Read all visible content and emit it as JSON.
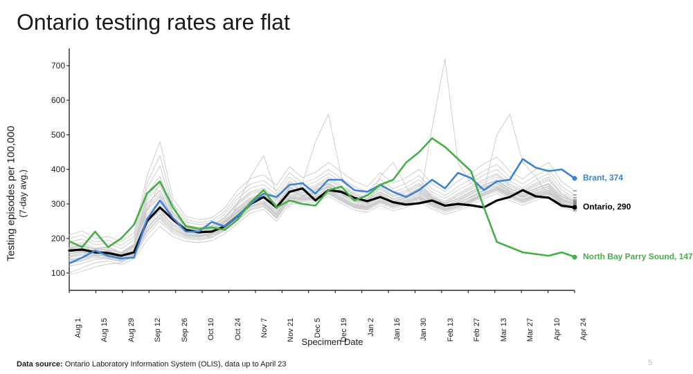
{
  "title": "Ontario testing rates are flat",
  "page_number": "5",
  "source_label": "Data source:",
  "source_text": "Ontario Laboratory Information System (OLIS), data up to April 23",
  "chart": {
    "type": "line",
    "ylabel": "Testing episodes per 100,000",
    "ylabel_sub": "(7-day avg.)",
    "xlabel": "Specimen Date",
    "ylim": [
      50,
      750
    ],
    "yticks": [
      100,
      200,
      300,
      400,
      500,
      600,
      700
    ],
    "xticks": [
      "Aug 1",
      "Aug 15",
      "Aug 29",
      "Sep 12",
      "Sep 26",
      "Oct 10",
      "Oct 24",
      "Nov 7",
      "Nov 21",
      "Dec 5",
      "Dec 19",
      "Jan 2",
      "Jan 16",
      "Jan 30",
      "Feb 13",
      "Feb 27",
      "Mar 13",
      "Mar 27",
      "Apr 10",
      "Apr 24"
    ],
    "n_points": 40,
    "background_color": "#ffffff",
    "axis_color": "#000000",
    "grid_on": false,
    "title_fontsize": 32,
    "label_fontsize": 14,
    "tick_fontsize": 12,
    "bg_line_color": "#c9c9c9",
    "bg_line_width": 0.9,
    "bg_series": [
      [
        150,
        160,
        155,
        150,
        140,
        160,
        250,
        280,
        240,
        220,
        215,
        220,
        240,
        270,
        300,
        310,
        280,
        330,
        320,
        330,
        340,
        325,
        310,
        300,
        320,
        300,
        310,
        330,
        305,
        290,
        300,
        320,
        340,
        350,
        330,
        320,
        330,
        340,
        310,
        300
      ],
      [
        170,
        180,
        160,
        165,
        150,
        170,
        300,
        340,
        260,
        230,
        225,
        230,
        250,
        290,
        320,
        330,
        300,
        350,
        330,
        340,
        360,
        340,
        320,
        310,
        335,
        315,
        325,
        345,
        315,
        300,
        315,
        335,
        355,
        370,
        345,
        330,
        345,
        360,
        320,
        305
      ],
      [
        140,
        145,
        150,
        140,
        135,
        150,
        220,
        260,
        220,
        205,
        200,
        205,
        225,
        255,
        285,
        295,
        260,
        310,
        310,
        315,
        330,
        310,
        290,
        285,
        305,
        290,
        300,
        315,
        295,
        280,
        290,
        305,
        325,
        340,
        320,
        305,
        320,
        330,
        300,
        290
      ],
      [
        160,
        168,
        162,
        158,
        150,
        175,
        280,
        320,
        255,
        225,
        220,
        225,
        245,
        278,
        308,
        320,
        290,
        340,
        325,
        335,
        350,
        332,
        312,
        305,
        328,
        308,
        318,
        338,
        310,
        295,
        308,
        328,
        348,
        360,
        338,
        325,
        338,
        350,
        315,
        302
      ],
      [
        130,
        138,
        150,
        150,
        142,
        158,
        230,
        270,
        228,
        210,
        206,
        212,
        232,
        262,
        292,
        302,
        268,
        318,
        314,
        320,
        336,
        316,
        296,
        290,
        310,
        294,
        304,
        320,
        300,
        284,
        294,
        310,
        330,
        344,
        324,
        310,
        324,
        336,
        304,
        294
      ],
      [
        175,
        182,
        168,
        170,
        156,
        178,
        310,
        355,
        268,
        235,
        228,
        234,
        256,
        298,
        328,
        338,
        308,
        358,
        336,
        346,
        368,
        346,
        326,
        314,
        342,
        320,
        332,
        352,
        320,
        304,
        322,
        342,
        362,
        378,
        350,
        334,
        352,
        368,
        326,
        308
      ],
      [
        145,
        152,
        156,
        146,
        140,
        156,
        240,
        280,
        232,
        215,
        210,
        216,
        236,
        266,
        296,
        306,
        272,
        322,
        318,
        324,
        340,
        320,
        300,
        294,
        314,
        298,
        308,
        324,
        304,
        288,
        298,
        314,
        334,
        348,
        328,
        314,
        328,
        340,
        308,
        298
      ],
      [
        165,
        172,
        166,
        162,
        154,
        180,
        290,
        330,
        260,
        228,
        222,
        228,
        250,
        284,
        314,
        326,
        296,
        346,
        330,
        340,
        356,
        336,
        316,
        310,
        334,
        312,
        324,
        344,
        316,
        300,
        314,
        334,
        354,
        366,
        342,
        328,
        344,
        356,
        320,
        306
      ],
      [
        155,
        162,
        158,
        154,
        146,
        168,
        270,
        310,
        250,
        222,
        216,
        222,
        244,
        276,
        306,
        318,
        288,
        338,
        324,
        334,
        350,
        330,
        310,
        304,
        328,
        306,
        318,
        338,
        310,
        294,
        308,
        328,
        348,
        360,
        336,
        322,
        338,
        350,
        314,
        300
      ],
      [
        135,
        142,
        152,
        148,
        138,
        154,
        225,
        265,
        225,
        208,
        204,
        210,
        230,
        260,
        290,
        300,
        266,
        316,
        312,
        318,
        334,
        314,
        294,
        288,
        308,
        292,
        302,
        318,
        298,
        282,
        292,
        308,
        328,
        342,
        322,
        308,
        322,
        334,
        302,
        292
      ],
      [
        180,
        188,
        172,
        176,
        160,
        184,
        330,
        380,
        276,
        240,
        232,
        238,
        262,
        306,
        336,
        346,
        316,
        366,
        342,
        354,
        378,
        354,
        332,
        320,
        350,
        326,
        340,
        360,
        326,
        308,
        330,
        350,
        372,
        388,
        358,
        340,
        360,
        378,
        332,
        312
      ],
      [
        120,
        128,
        140,
        142,
        132,
        148,
        210,
        250,
        215,
        200,
        196,
        202,
        222,
        252,
        282,
        292,
        258,
        308,
        306,
        312,
        328,
        308,
        288,
        282,
        302,
        286,
        296,
        312,
        292,
        276,
        286,
        302,
        322,
        336,
        316,
        302,
        316,
        328,
        296,
        286
      ],
      [
        200,
        210,
        190,
        195,
        180,
        205,
        360,
        440,
        300,
        255,
        246,
        252,
        278,
        326,
        358,
        368,
        338,
        390,
        360,
        374,
        400,
        374,
        350,
        336,
        372,
        344,
        360,
        382,
        344,
        324,
        350,
        372,
        396,
        414,
        378,
        358,
        382,
        400,
        350,
        326
      ],
      [
        148,
        156,
        160,
        150,
        144,
        160,
        246,
        286,
        236,
        218,
        214,
        220,
        240,
        270,
        300,
        310,
        276,
        326,
        322,
        328,
        344,
        324,
        304,
        298,
        318,
        302,
        312,
        328,
        308,
        292,
        302,
        318,
        338,
        352,
        332,
        318,
        332,
        344,
        312,
        302
      ],
      [
        162,
        170,
        164,
        160,
        152,
        176,
        284,
        324,
        256,
        226,
        220,
        226,
        248,
        280,
        310,
        322,
        292,
        342,
        326,
        336,
        352,
        332,
        312,
        306,
        330,
        308,
        320,
        340,
        312,
        296,
        310,
        330,
        350,
        362,
        338,
        324,
        340,
        352,
        316,
        302
      ],
      [
        138,
        146,
        154,
        146,
        140,
        156,
        232,
        272,
        228,
        212,
        208,
        214,
        234,
        264,
        294,
        304,
        270,
        320,
        316,
        322,
        338,
        318,
        298,
        292,
        312,
        296,
        306,
        322,
        302,
        286,
        296,
        312,
        332,
        346,
        326,
        312,
        326,
        338,
        306,
        296
      ],
      [
        172,
        180,
        170,
        174,
        158,
        182,
        320,
        365,
        272,
        238,
        230,
        236,
        260,
        302,
        332,
        342,
        312,
        362,
        338,
        350,
        372,
        350,
        328,
        316,
        346,
        322,
        336,
        356,
        322,
        304,
        326,
        346,
        368,
        384,
        354,
        336,
        356,
        372,
        328,
        308
      ],
      [
        128,
        136,
        146,
        144,
        136,
        152,
        218,
        258,
        220,
        204,
        200,
        206,
        226,
        256,
        286,
        296,
        262,
        312,
        310,
        316,
        332,
        312,
        292,
        286,
        306,
        290,
        300,
        316,
        296,
        280,
        290,
        306,
        326,
        340,
        320,
        306,
        320,
        332,
        300,
        290
      ],
      [
        190,
        198,
        182,
        186,
        170,
        196,
        345,
        410,
        288,
        248,
        240,
        246,
        270,
        316,
        346,
        356,
        326,
        378,
        350,
        364,
        388,
        364,
        340,
        326,
        360,
        334,
        348,
        370,
        334,
        316,
        340,
        360,
        384,
        400,
        366,
        346,
        370,
        388,
        340,
        318
      ],
      [
        100,
        115,
        130,
        135,
        125,
        140,
        195,
        235,
        205,
        192,
        188,
        194,
        214,
        244,
        274,
        284,
        250,
        300,
        300,
        306,
        322,
        302,
        282,
        276,
        296,
        280,
        290,
        306,
        286,
        270,
        280,
        296,
        316,
        330,
        310,
        296,
        310,
        322,
        290,
        280
      ],
      [
        210,
        222,
        200,
        206,
        190,
        216,
        380,
        480,
        316,
        264,
        254,
        260,
        288,
        340,
        374,
        384,
        354,
        408,
        376,
        392,
        420,
        392,
        366,
        350,
        390,
        360,
        376,
        400,
        358,
        336,
        366,
        390,
        416,
        436,
        394,
        372,
        400,
        420,
        364,
        338
      ],
      [
        156,
        164,
        162,
        156,
        148,
        166,
        262,
        302,
        244,
        222,
        216,
        222,
        244,
        274,
        304,
        316,
        284,
        334,
        324,
        332,
        348,
        328,
        308,
        302,
        324,
        304,
        316,
        334,
        308,
        292,
        304,
        322,
        342,
        356,
        334,
        320,
        334,
        346,
        312,
        300
      ],
      [
        95,
        105,
        118,
        126,
        130,
        150,
        280,
        360,
        300,
        230,
        210,
        205,
        230,
        300,
        380,
        440,
        330,
        290,
        360,
        480,
        560,
        380,
        310,
        290,
        380,
        420,
        350,
        300,
        520,
        720,
        420,
        360,
        340,
        500,
        560,
        420,
        380,
        320,
        300,
        290
      ],
      [
        168,
        176,
        170,
        166,
        158,
        184,
        298,
        338,
        262,
        230,
        224,
        230,
        252,
        286,
        316,
        328,
        298,
        348,
        332,
        342,
        358,
        338,
        318,
        312,
        336,
        314,
        326,
        346,
        318,
        302,
        316,
        336,
        356,
        368,
        344,
        330,
        346,
        358,
        322,
        308
      ]
    ],
    "series": [
      {
        "name": "ontario",
        "label": "Ontario, 290",
        "color": "#000000",
        "width": 3.2,
        "end_value": 290,
        "data": [
          165,
          168,
          160,
          158,
          150,
          160,
          250,
          290,
          255,
          225,
          218,
          220,
          235,
          265,
          300,
          320,
          290,
          335,
          345,
          310,
          340,
          335,
          318,
          308,
          320,
          305,
          298,
          302,
          310,
          295,
          300,
          296,
          290,
          310,
          320,
          340,
          322,
          318,
          295,
          290
        ]
      },
      {
        "name": "brant",
        "label": "Brant, 374",
        "color": "#3b83d6",
        "width": 2.6,
        "end_value": 374,
        "data": [
          128,
          145,
          165,
          150,
          142,
          145,
          255,
          310,
          260,
          220,
          220,
          248,
          235,
          265,
          300,
          330,
          320,
          355,
          360,
          330,
          370,
          370,
          340,
          335,
          355,
          335,
          320,
          340,
          370,
          345,
          390,
          375,
          340,
          365,
          370,
          430,
          405,
          395,
          400,
          374
        ]
      },
      {
        "name": "northbay",
        "label": "North Bay Parry Sound, 147",
        "color": "#44b044",
        "width": 2.6,
        "end_value": 147,
        "data": [
          192,
          175,
          220,
          175,
          200,
          240,
          330,
          365,
          290,
          235,
          228,
          232,
          225,
          255,
          305,
          340,
          290,
          310,
          300,
          295,
          340,
          350,
          310,
          325,
          355,
          370,
          420,
          450,
          490,
          465,
          430,
          395,
          290,
          190,
          175,
          160,
          155,
          150,
          160,
          147
        ]
      }
    ]
  }
}
